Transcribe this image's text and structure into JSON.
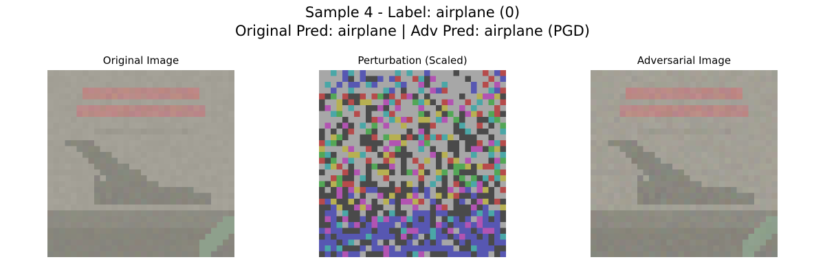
{
  "figure": {
    "suptitle_line1": "Sample 4 - Label: airplane (0)",
    "suptitle_line2": "Original Pred: airplane | Adv Pred: airplane (PGD)"
  },
  "panels": [
    {
      "title": "Original Image"
    },
    {
      "title": "Perturbation (Scaled)"
    },
    {
      "title": "Adversarial Image"
    }
  ],
  "colors": {
    "background": "#ffffff",
    "image_base_gray": "#a3a096",
    "image_dark_band": "#8d8b82",
    "image_red_text": "#b98a86",
    "airplane_shadow": "#8f8e85",
    "perturbation_gray": "#a7a7a7",
    "perturbation_dark": "#4a4a4a",
    "perturbation_red": "#b64b4b",
    "perturbation_yellow": "#b7b052",
    "perturbation_teal": "#4aa7a7",
    "perturbation_blue": "#5757b2",
    "perturbation_magenta": "#b254b2",
    "perturbation_green": "#53a756"
  }
}
